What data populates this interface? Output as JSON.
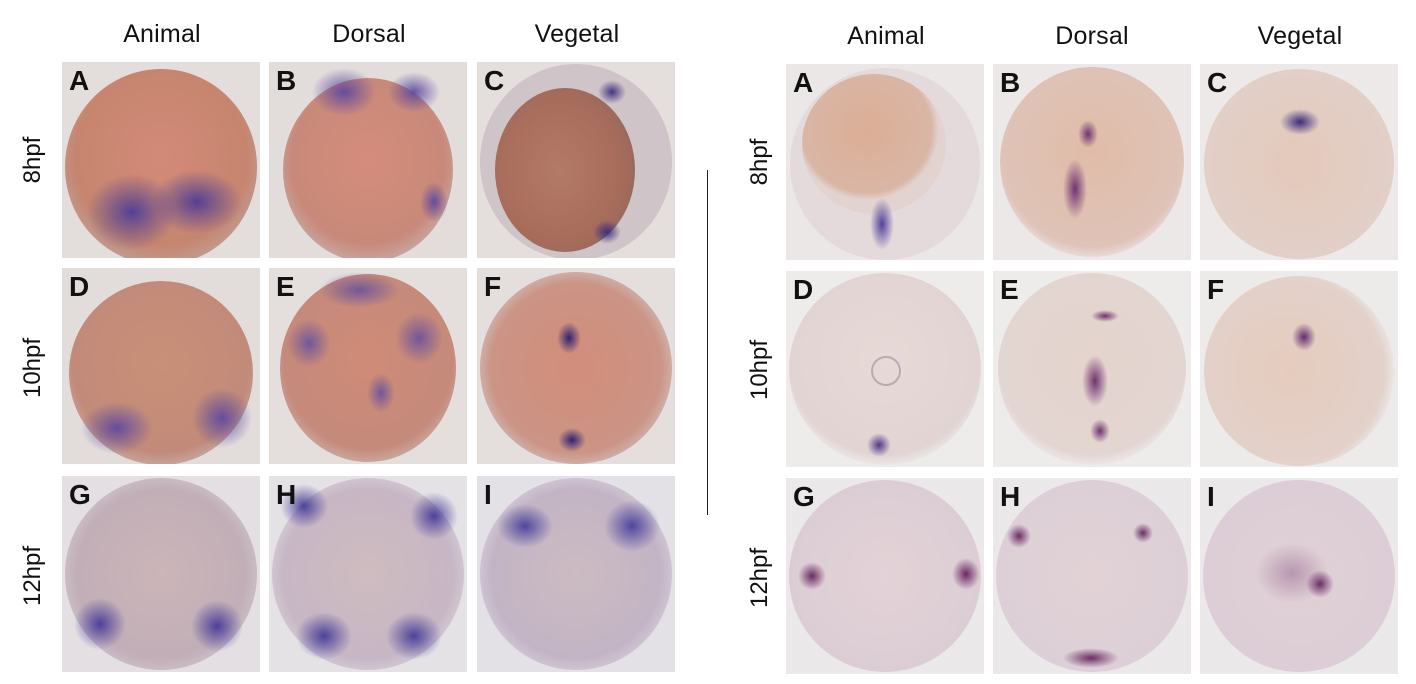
{
  "figure": {
    "left": {
      "columns": [
        "Animal",
        "Dorsal",
        "Vegetal"
      ],
      "rows": [
        "8hpf",
        "10hpf",
        "12hpf"
      ],
      "panels": [
        "A",
        "B",
        "C",
        "D",
        "E",
        "F",
        "G",
        "H",
        "I"
      ]
    },
    "right": {
      "columns": [
        "Animal",
        "Dorsal",
        "Vegetal"
      ],
      "rows": [
        "8hpf",
        "10hpf",
        "12hpf"
      ],
      "panels": [
        "A",
        "B",
        "C",
        "D",
        "E",
        "F",
        "G",
        "H",
        "I"
      ]
    }
  },
  "colors": {
    "background_grey": "#e6e3e1",
    "embryo_orange": "#c98873",
    "embryo_pale": "#d9c9cf",
    "stain_purple": "#5b4aa0",
    "stain_dark": "#3a2a78",
    "stain_magenta": "#6b2e6e"
  }
}
